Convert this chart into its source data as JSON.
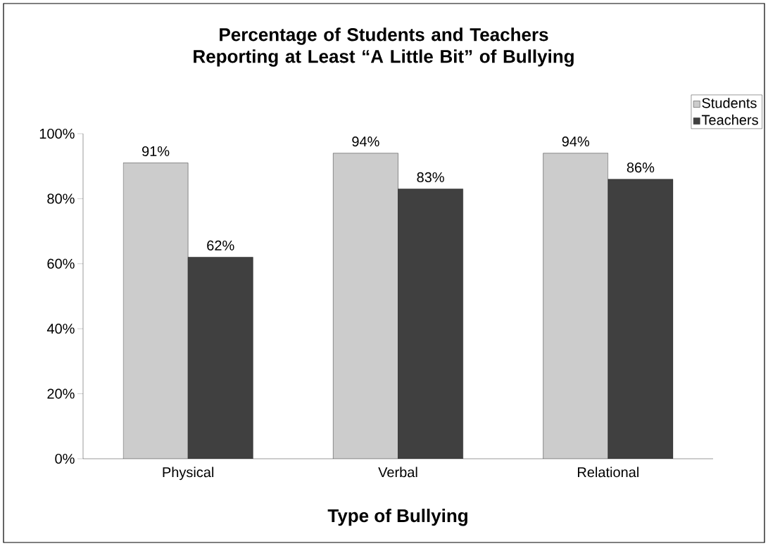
{
  "chart_data": {
    "type": "bar",
    "title": "Percentage of Students and Teachers Reporting at Least “A Little Bit” of Bullying",
    "xlabel": "Type of Bullying",
    "categories": [
      "Physical",
      "Verbal",
      "Relational"
    ],
    "series": [
      {
        "name": "Students",
        "color": "#cccccc",
        "values": [
          91,
          94,
          94
        ],
        "value_labels": [
          "91%",
          "94%",
          "94%"
        ]
      },
      {
        "name": "Teachers",
        "color": "#404040",
        "values": [
          62,
          83,
          86
        ],
        "value_labels": [
          "62%",
          "83%",
          "86%"
        ]
      }
    ],
    "ylim": [
      0,
      100
    ],
    "yticks": [
      {
        "value": 0,
        "label": "0%"
      },
      {
        "value": 20,
        "label": "20%"
      },
      {
        "value": 40,
        "label": "40%"
      },
      {
        "value": 60,
        "label": "60%"
      },
      {
        "value": 80,
        "label": "80%"
      },
      {
        "value": 100,
        "label": "100%"
      }
    ],
    "legend": "top right",
    "grid": false
  }
}
